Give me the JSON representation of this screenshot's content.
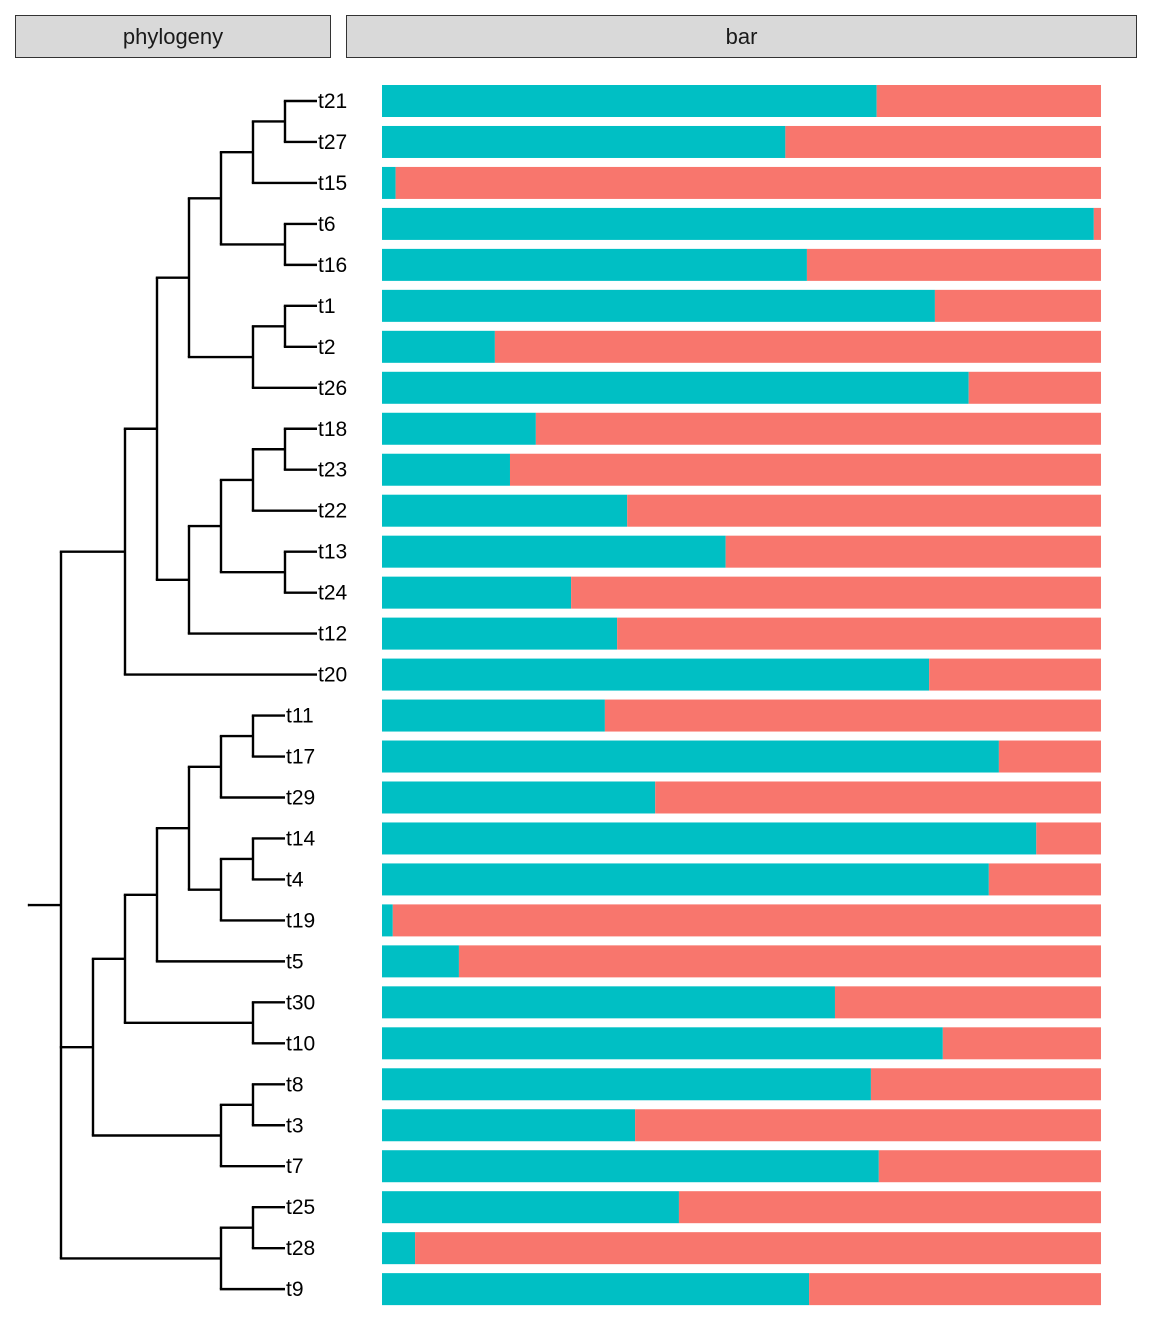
{
  "panels": {
    "left_title": "phylogeny",
    "right_title": "bar"
  },
  "colors": {
    "first": "#00BFC4",
    "second": "#F8766D",
    "tree": "#000000"
  },
  "chart_data": [
    {
      "type": "tree",
      "title": "phylogeny",
      "newick": "((((((((t21:1,t27:1):1,t15:2):1,(t6:1,t16:1):2):1,((t1:1,t2:1):1,t26:2):2):1,((((t18:1,t23:1):1,t22:2):1,(t13:1,t24:1):2):1,t12:4):1):1,t20:6):2,((((((t11:1,t17:1):1,t29:2):1,((t14:1,t4:1):1,t19:2):1):1,t5:4):1,(t30:1,t10:1):4):1,((t8:1,t3:1):1,t7:2):4):1,((t25:1,t28:1):1,t9:2):5):1);"
    },
    {
      "type": "bar",
      "stacked": true,
      "orientation": "horizontal",
      "title": "bar",
      "categories": [
        "t21",
        "t27",
        "t15",
        "t6",
        "t16",
        "t1",
        "t2",
        "t26",
        "t18",
        "t23",
        "t22",
        "t13",
        "t24",
        "t12",
        "t20",
        "t11",
        "t17",
        "t29",
        "t14",
        "t4",
        "t19",
        "t5",
        "t30",
        "t10",
        "t8",
        "t3",
        "t7",
        "t25",
        "t28",
        "t9"
      ],
      "series": [
        {
          "values": [
            0.688,
            0.561,
            0.019,
            0.99,
            0.591,
            0.769,
            0.157,
            0.816,
            0.214,
            0.178,
            0.341,
            0.478,
            0.263,
            0.327,
            0.761,
            0.31,
            0.858,
            0.38,
            0.91,
            0.844,
            0.015,
            0.107,
            0.63,
            0.78,
            0.68,
            0.352,
            0.691,
            0.413,
            0.046,
            0.594
          ]
        },
        {
          "values": [
            0.312,
            0.439,
            0.981,
            0.01,
            0.409,
            0.231,
            0.843,
            0.184,
            0.786,
            0.822,
            0.659,
            0.522,
            0.737,
            0.673,
            0.239,
            0.69,
            0.142,
            0.62,
            0.09,
            0.156,
            0.985,
            0.893,
            0.37,
            0.22,
            0.32,
            0.648,
            0.309,
            0.587,
            0.954,
            0.406
          ]
        }
      ],
      "xlim": [
        0,
        1
      ]
    }
  ]
}
